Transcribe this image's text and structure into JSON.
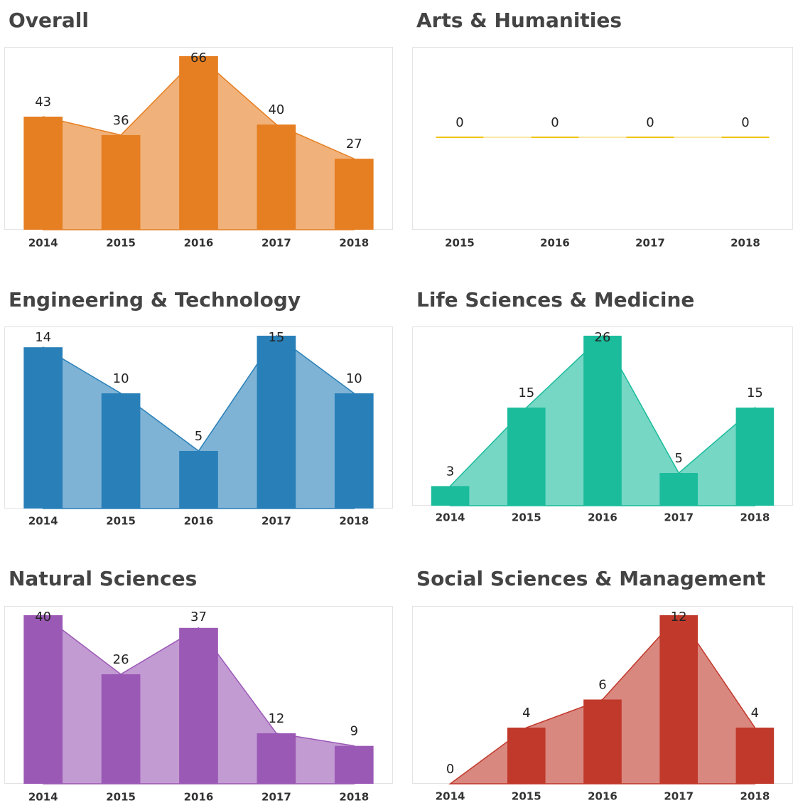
{
  "chart_data": [
    {
      "type": "bar",
      "title": "Overall",
      "categories": [
        "2014",
        "2015",
        "2016",
        "2017",
        "2018"
      ],
      "values": [
        43,
        36,
        66,
        40,
        27
      ],
      "color": "#e67e22"
    },
    {
      "type": "bar",
      "title": "Arts & Humanities",
      "categories": [
        "2015",
        "2016",
        "2017",
        "2018"
      ],
      "values": [
        0,
        0,
        0,
        0
      ],
      "color": "#f1c40f"
    },
    {
      "type": "bar",
      "title": "Engineering & Technology",
      "categories": [
        "2014",
        "2015",
        "2016",
        "2017",
        "2018"
      ],
      "values": [
        14,
        10,
        5,
        15,
        10
      ],
      "color": "#2980b9"
    },
    {
      "type": "bar",
      "title": "Life Sciences & Medicine",
      "categories": [
        "2014",
        "2015",
        "2016",
        "2017",
        "2018"
      ],
      "values": [
        3,
        15,
        26,
        5,
        15
      ],
      "color": "#1abc9c"
    },
    {
      "type": "bar",
      "title": "Natural Sciences",
      "categories": [
        "2014",
        "2015",
        "2016",
        "2017",
        "2018"
      ],
      "values": [
        40,
        26,
        37,
        12,
        9
      ],
      "color": "#9b59b6"
    },
    {
      "type": "bar",
      "title": "Social Sciences & Management",
      "categories": [
        "2014",
        "2015",
        "2016",
        "2017",
        "2018"
      ],
      "values": [
        0,
        4,
        6,
        12,
        4
      ],
      "color": "#c0392b"
    }
  ]
}
